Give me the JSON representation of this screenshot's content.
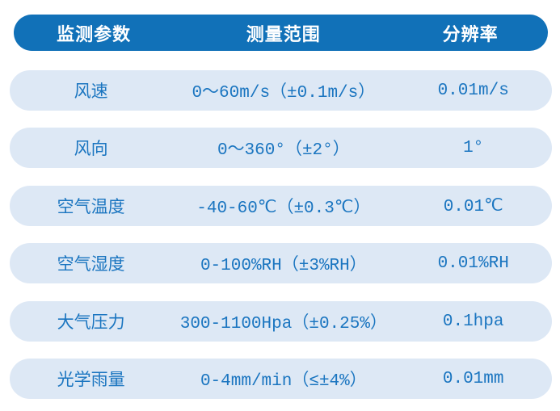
{
  "table": {
    "columns": [
      "监测参数",
      "测量范围",
      "分辨率"
    ],
    "rows": [
      {
        "parameter": "风速",
        "range": "0～60m/s（±0.1m/s）",
        "resolution": "0.01m/s"
      },
      {
        "parameter": "风向",
        "range": "0～360°（±2°）",
        "resolution": "1°"
      },
      {
        "parameter": "空气温度",
        "range": "-40-60℃（±0.3℃）",
        "resolution": "0.01℃"
      },
      {
        "parameter": "空气湿度",
        "range": "0-100%RH（±3%RH）",
        "resolution": "0.01%RH"
      },
      {
        "parameter": "大气压力",
        "range": "300-1100Hpa（±0.25%）",
        "resolution": "0.1hpa"
      },
      {
        "parameter": "光学雨量",
        "range": "0-4mm/min（≤±4%）",
        "resolution": "0.01mm"
      }
    ]
  },
  "colors": {
    "header_bg": "#1171b8",
    "header_text": "#ffffff",
    "row_bg": "#dde8f5",
    "row_text": "#1a75c0",
    "page_bg": "#ffffff"
  }
}
